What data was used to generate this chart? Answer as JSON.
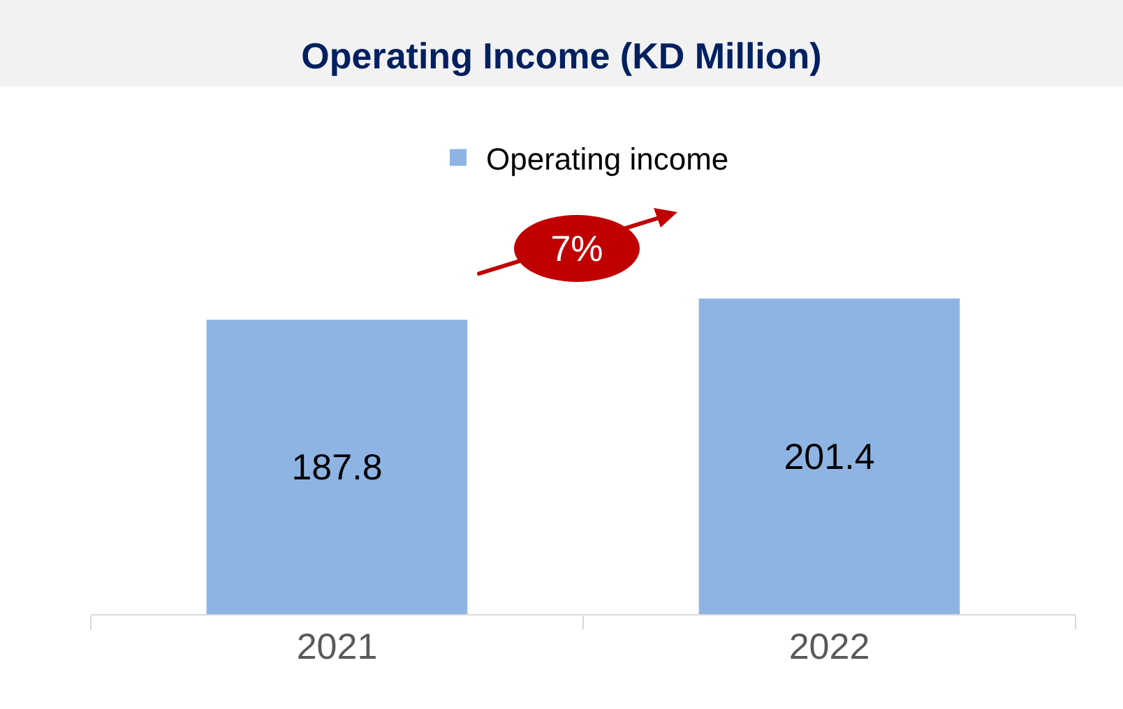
{
  "chart_data": {
    "type": "bar",
    "title": "Operating Income (KD Million)",
    "categories": [
      "2021",
      "2022"
    ],
    "series": [
      {
        "name": "Operating income",
        "color": "#8eb4e3",
        "values": [
          187.8,
          201.4
        ]
      }
    ],
    "data_labels": true,
    "legend": "top",
    "tick_labels": "x",
    "annotations": [
      "7%"
    ]
  }
}
